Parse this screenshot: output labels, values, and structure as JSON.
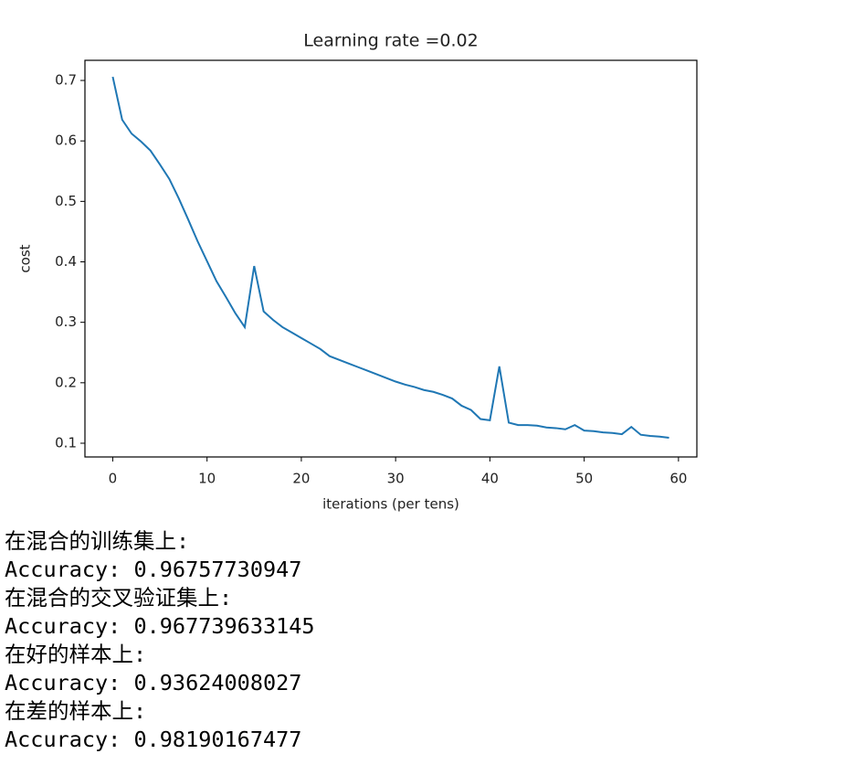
{
  "chart_data": {
    "type": "line",
    "title": "Learning rate =0.02",
    "x_label": "iterations (per tens)",
    "y_label": "cost",
    "x": [
      0,
      1,
      2,
      3,
      4,
      5,
      6,
      7,
      8,
      9,
      10,
      11,
      12,
      13,
      14,
      15,
      16,
      17,
      18,
      19,
      20,
      21,
      22,
      23,
      24,
      25,
      26,
      27,
      28,
      29,
      30,
      31,
      32,
      33,
      34,
      35,
      36,
      37,
      38,
      39,
      40,
      41,
      42,
      43,
      44,
      45,
      46,
      47,
      48,
      49,
      50,
      51,
      52,
      53,
      54,
      55,
      56,
      57,
      58,
      59
    ],
    "series": [
      {
        "color": "#1f77b4",
        "values": [
          0.706,
          0.635,
          0.612,
          0.599,
          0.584,
          0.561,
          0.537,
          0.505,
          0.47,
          0.434,
          0.401,
          0.368,
          0.342,
          0.315,
          0.292,
          0.393,
          0.318,
          0.304,
          0.292,
          0.283,
          0.274,
          0.265,
          0.256,
          0.244,
          0.238,
          0.232,
          0.226,
          0.22,
          0.214,
          0.208,
          0.202,
          0.197,
          0.193,
          0.188,
          0.185,
          0.18,
          0.174,
          0.162,
          0.155,
          0.14,
          0.138,
          0.227,
          0.134,
          0.13,
          0.13,
          0.129,
          0.126,
          0.125,
          0.123,
          0.13,
          0.121,
          0.12,
          0.118,
          0.117,
          0.115,
          0.127,
          0.114,
          0.112,
          0.111,
          0.109
        ]
      }
    ],
    "xlim": [
      -2.95,
      61.95
    ],
    "xticks": [
      0,
      10,
      20,
      30,
      40,
      50,
      60
    ],
    "ylim": [
      0.0773,
      0.7333
    ],
    "yticks": [
      0.1,
      0.2,
      0.3,
      0.4,
      0.5,
      0.6,
      0.7
    ]
  },
  "output": {
    "lines": [
      "在混合的训练集上:",
      "Accuracy: 0.96757730947",
      "在混合的交叉验证集上:",
      "Accuracy: 0.967739633145",
      "在好的样本上:",
      "Accuracy: 0.93624008027",
      "在差的样本上:",
      "Accuracy: 0.98190167477"
    ]
  }
}
